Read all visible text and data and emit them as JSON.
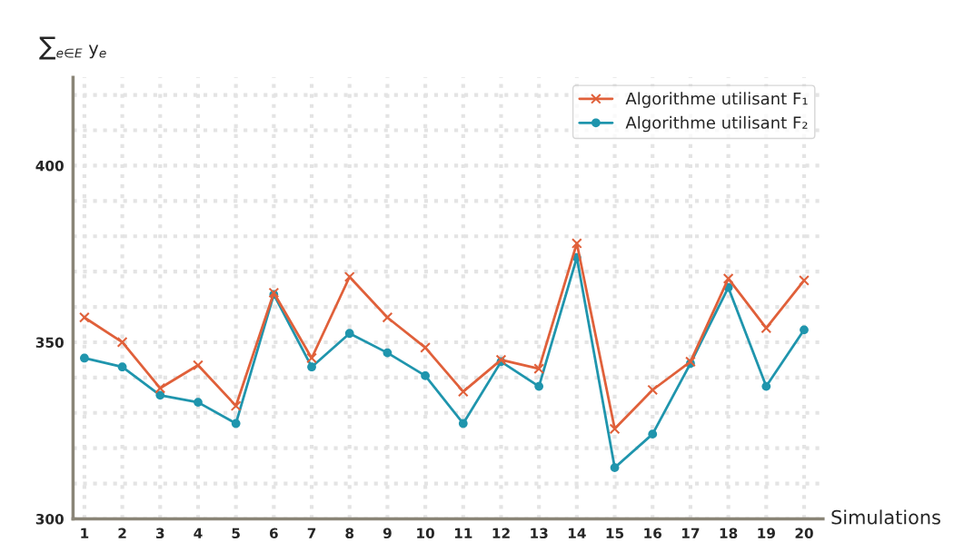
{
  "chart_data": {
    "type": "line",
    "xlabel": "Simulations",
    "ylabel": "∑$_{e∈E}$ y$_{e}$",
    "categories": [
      "1",
      "2",
      "3",
      "4",
      "5",
      "6",
      "7",
      "8",
      "9",
      "10",
      "11",
      "12",
      "13",
      "14",
      "15",
      "16",
      "17",
      "18",
      "19",
      "20"
    ],
    "series": [
      {
        "name": "Algorithme utilisant F₁",
        "color": "#e0603a",
        "marker": "cross",
        "values": [
          357,
          350,
          337,
          343.5,
          332,
          364,
          345.5,
          368.5,
          357,
          348.5,
          336,
          345,
          342.5,
          378,
          325.5,
          336.5,
          344.5,
          368,
          354,
          367.5
        ]
      },
      {
        "name": "Algorithme utilisant F₂",
        "color": "#1f95ad",
        "marker": "circle",
        "values": [
          345.5,
          343,
          335,
          333,
          327,
          363.5,
          343,
          352.5,
          347,
          340.5,
          327,
          344.5,
          337.5,
          374,
          314.5,
          324,
          344,
          365.5,
          337.5,
          353.5
        ]
      }
    ],
    "ylim": [
      300,
      425
    ],
    "yticks": [
      {
        "value": 300,
        "label": "300"
      },
      {
        "value": 310,
        "label": null
      },
      {
        "value": 320,
        "label": null
      },
      {
        "value": 330,
        "label": null
      },
      {
        "value": 340,
        "label": null
      },
      350,
      {
        "value": 360,
        "label": null
      },
      {
        "value": 370,
        "label": null
      },
      {
        "value": 380,
        "label": null
      },
      {
        "value": 390,
        "label": null
      },
      400,
      {
        "value": 410,
        "label": null
      },
      {
        "value": 420,
        "label": null
      }
    ],
    "grid": true,
    "legend": "top right",
    "line_style": "solid"
  }
}
